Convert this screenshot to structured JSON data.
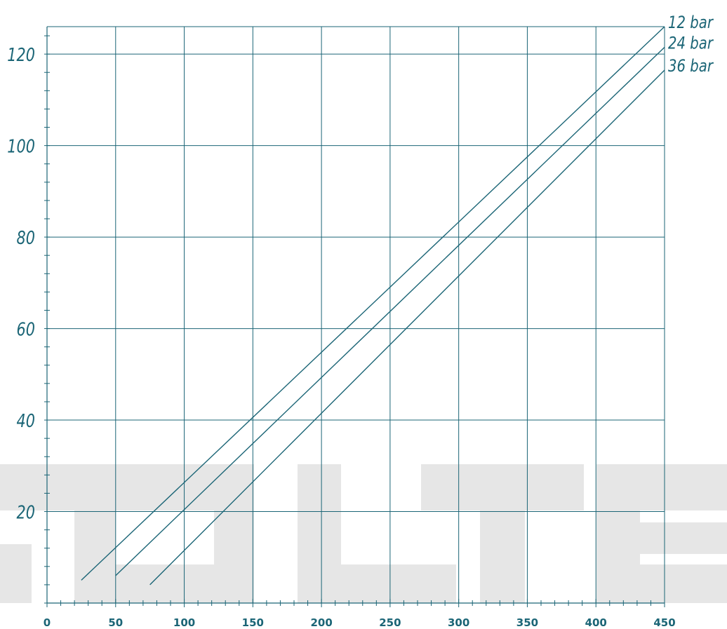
{
  "chart_data": {
    "type": "line",
    "title": "",
    "xlabel": "",
    "ylabel": "",
    "xlim": [
      0,
      450
    ],
    "ylim": [
      0,
      126
    ],
    "xticks": [
      0,
      50,
      100,
      150,
      200,
      250,
      300,
      350,
      400,
      450
    ],
    "yticks": [
      20,
      40,
      60,
      80,
      100,
      120
    ],
    "grid": true,
    "series": [
      {
        "name": "12 bar",
        "x": [
          25,
          450
        ],
        "y": [
          5,
          126
        ]
      },
      {
        "name": "24 bar",
        "x": [
          50,
          450
        ],
        "y": [
          6,
          121.5
        ]
      },
      {
        "name": "36 bar",
        "x": [
          75,
          450
        ],
        "y": [
          4,
          116.5
        ]
      }
    ],
    "colors": {
      "line": "#1b6576",
      "watermark": "#e6e6e6"
    }
  },
  "watermark_text": "SOLTEC"
}
